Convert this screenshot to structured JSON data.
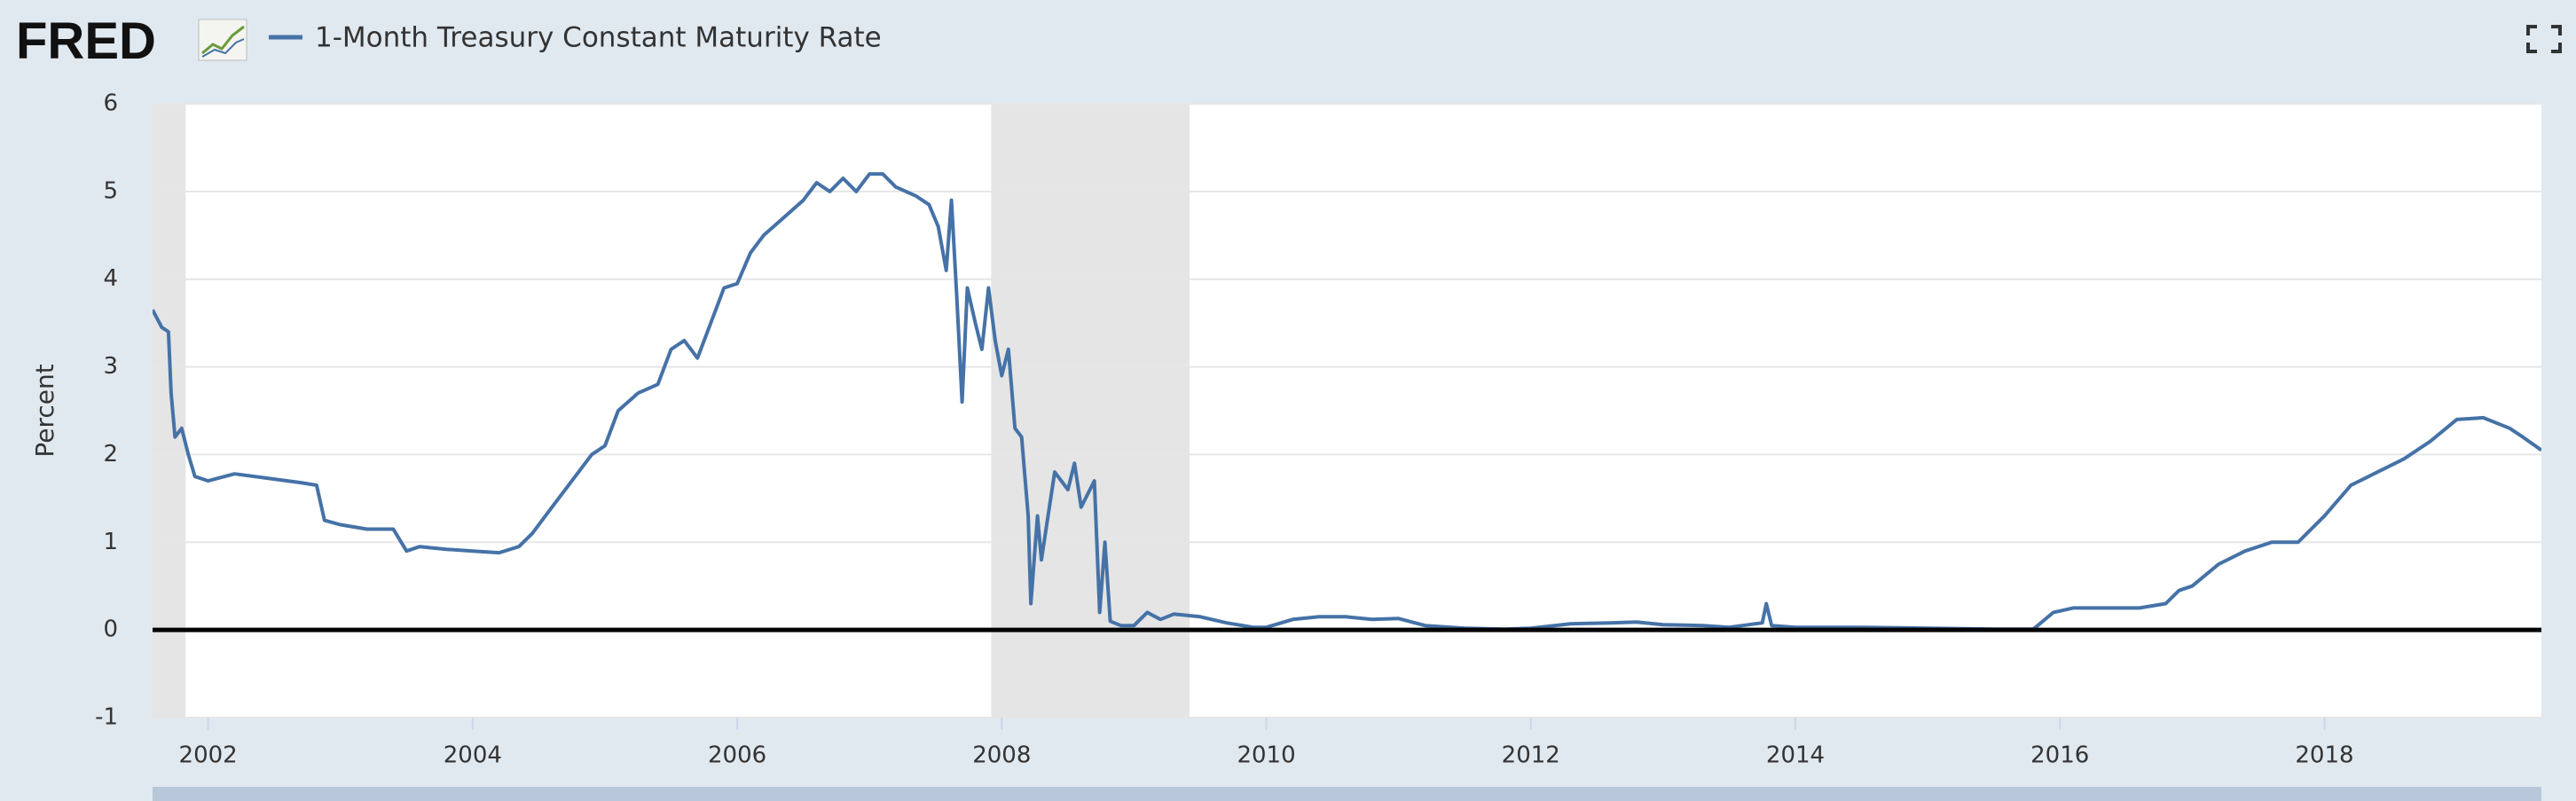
{
  "brand": "FRED",
  "chart_data": {
    "type": "line",
    "y_label": "Percent",
    "xlim": [
      2001.58,
      2019.64
    ],
    "xticks": [
      2002,
      2004,
      2006,
      2008,
      2010,
      2012,
      2014,
      2016,
      2018
    ],
    "ylim": [
      -1,
      6
    ],
    "yticks": [
      -1,
      0,
      1,
      2,
      3,
      4,
      5,
      6
    ],
    "grid": true,
    "recessions": [
      [
        2001.17,
        2001.83
      ],
      [
        2007.92,
        2009.42
      ]
    ],
    "x": [
      2001.58,
      2001.65,
      2001.7,
      2001.72,
      2001.75,
      2001.8,
      2001.85,
      2001.9,
      2002.0,
      2002.2,
      2002.5,
      2002.7,
      2002.82,
      2002.88,
      2003.0,
      2003.2,
      2003.4,
      2003.5,
      2003.6,
      2003.8,
      2004.0,
      2004.2,
      2004.35,
      2004.45,
      2004.6,
      2004.75,
      2004.9,
      2005.0,
      2005.1,
      2005.25,
      2005.4,
      2005.5,
      2005.6,
      2005.7,
      2005.8,
      2005.9,
      2006.0,
      2006.1,
      2006.2,
      2006.35,
      2006.5,
      2006.6,
      2006.7,
      2006.8,
      2006.9,
      2007.0,
      2007.1,
      2007.2,
      2007.35,
      2007.45,
      2007.52,
      2007.58,
      2007.62,
      2007.66,
      2007.7,
      2007.74,
      2007.8,
      2007.85,
      2007.9,
      2007.95,
      2008.0,
      2008.05,
      2008.1,
      2008.15,
      2008.2,
      2008.22,
      2008.27,
      2008.3,
      2008.4,
      2008.5,
      2008.55,
      2008.6,
      2008.7,
      2008.74,
      2008.78,
      2008.82,
      2008.9,
      2009.0,
      2009.1,
      2009.2,
      2009.3,
      2009.5,
      2009.7,
      2009.9,
      2010.0,
      2010.2,
      2010.4,
      2010.6,
      2010.8,
      2011.0,
      2011.2,
      2011.5,
      2011.8,
      2012.0,
      2012.3,
      2012.6,
      2012.8,
      2013.0,
      2013.3,
      2013.5,
      2013.75,
      2013.78,
      2013.82,
      2014.0,
      2014.5,
      2015.0,
      2015.5,
      2015.8,
      2015.95,
      2016.1,
      2016.3,
      2016.6,
      2016.8,
      2016.9,
      2017.0,
      2017.2,
      2017.4,
      2017.6,
      2017.8,
      2018.0,
      2018.2,
      2018.4,
      2018.6,
      2018.8,
      2019.0,
      2019.2,
      2019.4,
      2019.5,
      2019.64
    ],
    "series": [
      {
        "name": "1-Month Treasury Constant Maturity Rate",
        "color": "#4572a7",
        "values": [
          3.65,
          3.45,
          3.4,
          2.7,
          2.2,
          2.3,
          2.0,
          1.75,
          1.7,
          1.78,
          1.72,
          1.68,
          1.65,
          1.25,
          1.2,
          1.15,
          1.15,
          0.9,
          0.95,
          0.92,
          0.9,
          0.88,
          0.95,
          1.1,
          1.4,
          1.7,
          2.0,
          2.1,
          2.5,
          2.7,
          2.8,
          3.2,
          3.3,
          3.1,
          3.5,
          3.9,
          3.95,
          4.3,
          4.5,
          4.7,
          4.9,
          5.1,
          5.0,
          5.15,
          5.0,
          5.2,
          5.2,
          5.05,
          4.95,
          4.85,
          4.6,
          4.1,
          4.9,
          3.8,
          2.6,
          3.9,
          3.5,
          3.2,
          3.9,
          3.3,
          2.9,
          3.2,
          2.3,
          2.2,
          1.3,
          0.3,
          1.3,
          0.8,
          1.8,
          1.6,
          1.9,
          1.4,
          1.7,
          0.2,
          1.0,
          0.1,
          0.05,
          0.05,
          0.2,
          0.12,
          0.18,
          0.15,
          0.08,
          0.03,
          0.03,
          0.12,
          0.15,
          0.15,
          0.12,
          0.13,
          0.05,
          0.02,
          0.01,
          0.02,
          0.07,
          0.08,
          0.09,
          0.06,
          0.05,
          0.03,
          0.08,
          0.3,
          0.05,
          0.03,
          0.03,
          0.02,
          0.01,
          0.01,
          0.2,
          0.25,
          0.25,
          0.25,
          0.3,
          0.45,
          0.5,
          0.75,
          0.9,
          1.0,
          1.0,
          1.3,
          1.65,
          1.8,
          1.95,
          2.15,
          2.4,
          2.42,
          2.3,
          2.2,
          2.05
        ]
      }
    ]
  }
}
